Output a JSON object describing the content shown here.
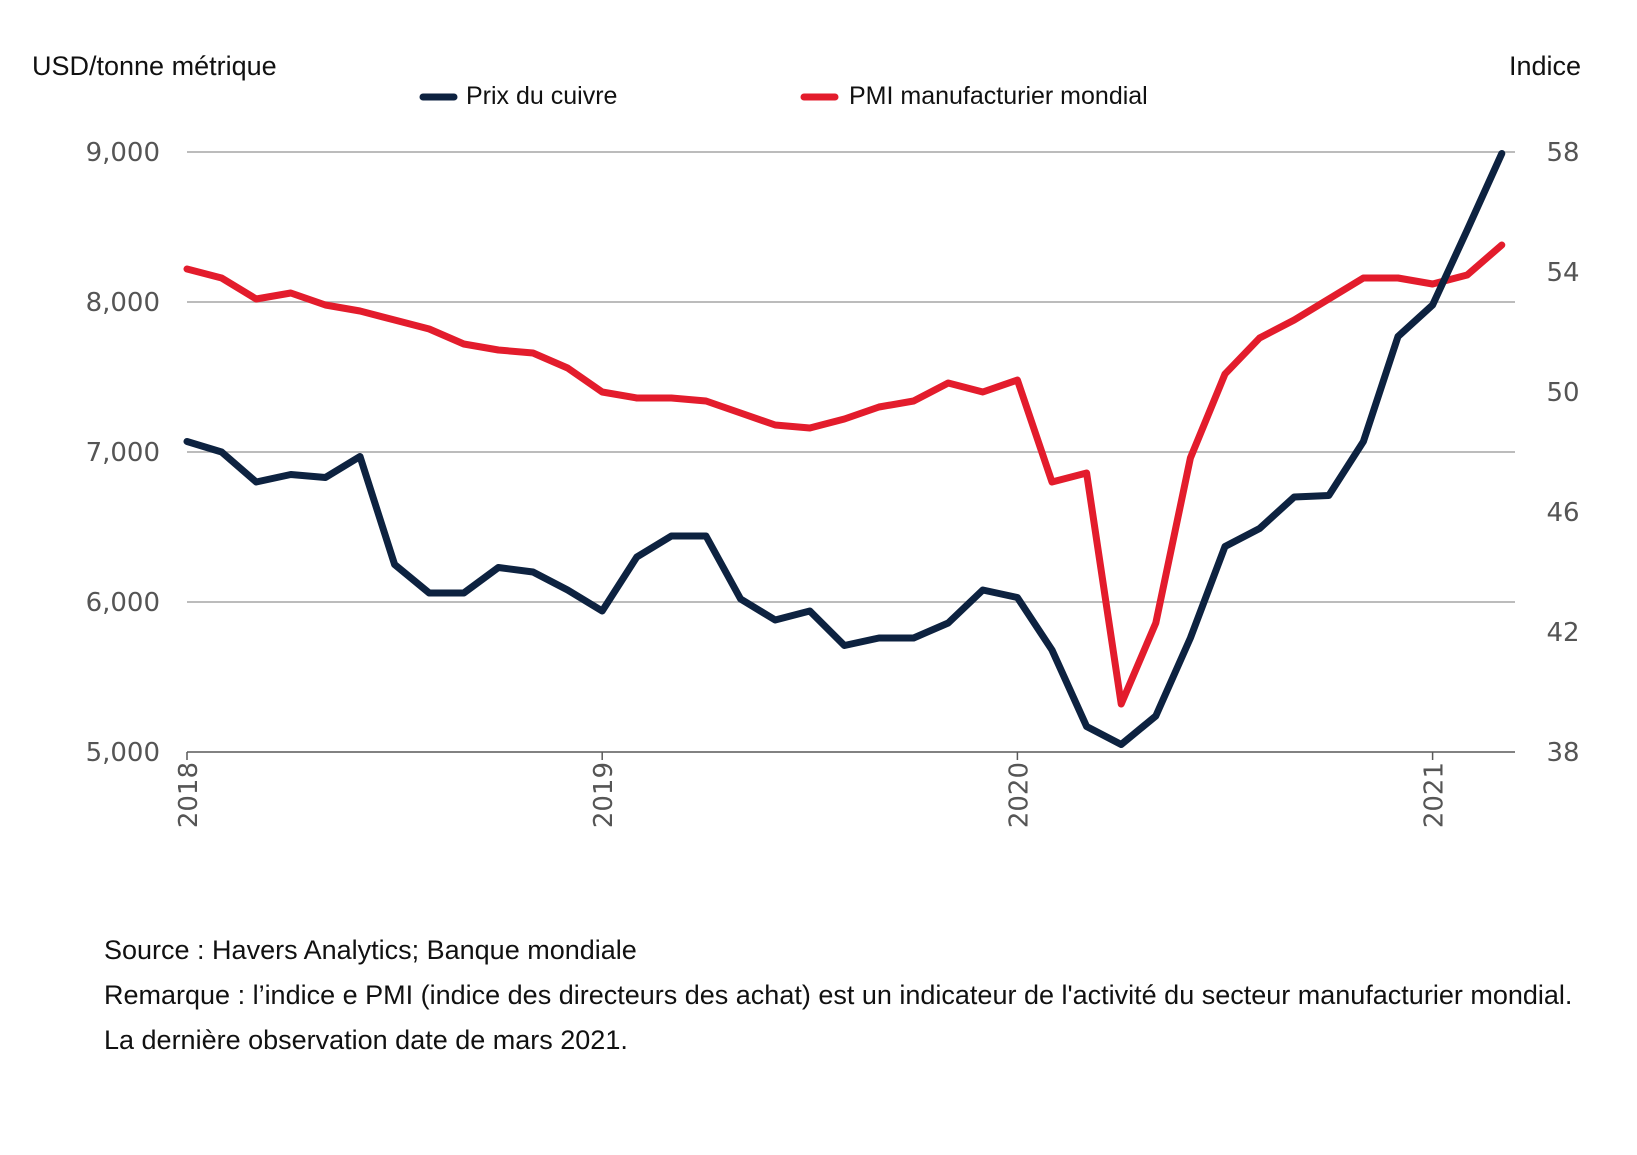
{
  "chart_data": {
    "type": "line",
    "title": "",
    "y_left_label": "USD/tonne métrique",
    "y_right_label": "Indice",
    "y_left_range": [
      5000,
      9000
    ],
    "y_right_range": [
      38,
      58
    ],
    "y_left_ticks": [
      "5,000",
      "6,000",
      "7,000",
      "8,000",
      "9,000"
    ],
    "y_right_ticks": [
      "38",
      "42",
      "46",
      "50",
      "54",
      "58"
    ],
    "x_ticks": [
      "2018",
      "2019",
      "2020",
      "2021"
    ],
    "x_start": "2018-01",
    "x_end": "2021-03",
    "series": [
      {
        "name": "Prix du cuivre",
        "axis": "left",
        "color": "#0d2240",
        "values": [
          7070,
          7000,
          6800,
          6850,
          6830,
          6970,
          6250,
          6060,
          6060,
          6230,
          6200,
          6080,
          5940,
          6300,
          6440,
          6440,
          6020,
          5880,
          5940,
          5710,
          5760,
          5760,
          5860,
          6080,
          6030,
          5680,
          5170,
          5050,
          5240,
          5760,
          6370,
          6490,
          6700,
          6710,
          7070,
          7770,
          7980,
          8480,
          8990
        ]
      },
      {
        "name": "PMI manufacturier mondial",
        "axis": "right",
        "color": "#e31c2c",
        "values": [
          54.1,
          53.8,
          53.1,
          53.3,
          52.9,
          52.7,
          52.4,
          52.1,
          51.6,
          51.4,
          51.3,
          50.8,
          50.0,
          49.8,
          49.8,
          49.7,
          49.3,
          48.9,
          48.8,
          49.1,
          49.5,
          49.7,
          50.3,
          50.0,
          50.4,
          47.0,
          47.3,
          39.6,
          42.3,
          47.8,
          50.6,
          51.8,
          52.4,
          53.1,
          53.8,
          53.8,
          53.6,
          53.9,
          54.9
        ]
      }
    ]
  },
  "notes": {
    "source": "Source : Havers Analytics; Banque mondiale",
    "remark": "Remarque : l’indice e PMI (indice des directeurs des achat) est un indicateur de l'activité du secteur manufacturier mondial.",
    "last_obs": "La dernière observation date de mars 2021."
  }
}
